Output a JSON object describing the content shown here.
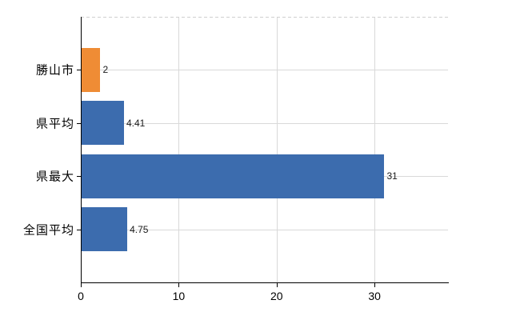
{
  "chart_data": {
    "type": "bar",
    "orientation": "horizontal",
    "title": "",
    "categories": [
      "勝山市",
      "県平均",
      "県最大",
      "全国平均"
    ],
    "values": [
      2,
      4.41,
      31,
      4.75
    ],
    "value_labels": [
      "2",
      "4.41",
      "31",
      "4.75"
    ],
    "bar_colors": [
      "#EF8C35",
      "#3C6CAE",
      "#3C6CAE",
      "#3C6CAE"
    ],
    "xticks": [
      0,
      10,
      20,
      30
    ],
    "xtick_labels": [
      "0",
      "10",
      "20",
      "30"
    ],
    "xlim": [
      0,
      37.5
    ],
    "grid": true,
    "legend": "none",
    "axis_color": "#000000",
    "gridline_color": "#D9D9D9",
    "background_color": "#FFFFFF"
  }
}
